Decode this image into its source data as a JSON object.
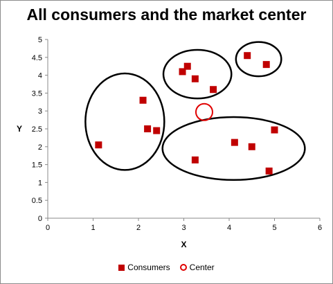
{
  "chart_data": {
    "type": "scatter",
    "title": "All consumers and the market center",
    "xlabel": "X",
    "ylabel": "Y",
    "xlim": [
      0,
      6
    ],
    "ylim": [
      0,
      5
    ],
    "xticks": [
      "0",
      "1",
      "2",
      "3",
      "4",
      "5",
      "6"
    ],
    "yticks": [
      "0",
      "0.5",
      "1",
      "1.5",
      "2",
      "2.5",
      "3",
      "3.5",
      "4",
      "4.5",
      "5"
    ],
    "grid": false,
    "legend_position": "bottom",
    "series": [
      {
        "name": "Consumers",
        "marker": "square",
        "color": "#c00000",
        "points": [
          [
            1.12,
            2.05
          ],
          [
            2.1,
            3.3
          ],
          [
            2.2,
            2.5
          ],
          [
            2.4,
            2.45
          ],
          [
            2.97,
            4.1
          ],
          [
            3.08,
            4.25
          ],
          [
            3.25,
            3.9
          ],
          [
            3.65,
            3.6
          ],
          [
            4.4,
            4.55
          ],
          [
            4.82,
            4.3
          ],
          [
            3.25,
            1.63
          ],
          [
            4.12,
            2.12
          ],
          [
            4.5,
            2.0
          ],
          [
            4.88,
            1.32
          ],
          [
            5.0,
            2.47
          ]
        ]
      },
      {
        "name": "Center",
        "marker": "open-circle",
        "color": "#e00000",
        "points": [
          [
            3.45,
            2.97
          ]
        ]
      }
    ],
    "clusters": [
      {
        "cx": 1.7,
        "cy": 2.7,
        "rx": 0.87,
        "ry": 1.35
      },
      {
        "cx": 3.3,
        "cy": 4.03,
        "rx": 0.75,
        "ry": 0.68
      },
      {
        "cx": 4.65,
        "cy": 4.45,
        "rx": 0.5,
        "ry": 0.48
      },
      {
        "cx": 4.1,
        "cy": 1.95,
        "rx": 1.57,
        "ry": 0.88
      }
    ]
  }
}
